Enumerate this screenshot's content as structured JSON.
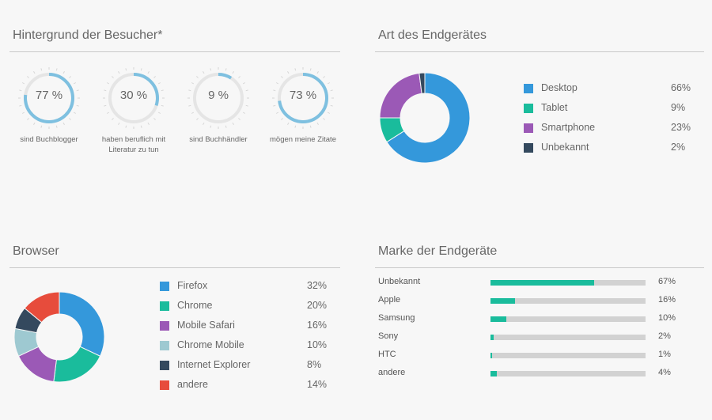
{
  "colors": {
    "gauge_arc": "#7ec0e0",
    "gauge_track": "#e5e5e5",
    "gauge_ticks": "#d6d6d6",
    "bar_fill": "#1abc9c",
    "bar_track": "#d2d2d2"
  },
  "chart_data": [
    {
      "id": "visitors",
      "type": "gauge",
      "title": "Hintergrund der Besucher*",
      "items": [
        {
          "value": 77,
          "display": "77 %",
          "label": "sind Buchblogger"
        },
        {
          "value": 30,
          "display": "30 %",
          "label": "haben beruflich mit Literatur zu tun"
        },
        {
          "value": 9,
          "display": "9 %",
          "label": "sind Buchhändler"
        },
        {
          "value": 73,
          "display": "73 %",
          "label": "mögen meine Zitate"
        }
      ]
    },
    {
      "id": "device",
      "type": "pie",
      "donut": true,
      "title": "Art des Endgerätes",
      "slices": [
        {
          "label": "Desktop",
          "value": 66,
          "display": "66%",
          "color": "#3498db"
        },
        {
          "label": "Tablet",
          "value": 9,
          "display": "9%",
          "color": "#1abc9c"
        },
        {
          "label": "Smartphone",
          "value": 23,
          "display": "23%",
          "color": "#9b59b6"
        },
        {
          "label": "Unbekannt",
          "value": 2,
          "display": "2%",
          "color": "#34495e"
        }
      ]
    },
    {
      "id": "browser",
      "type": "pie",
      "donut": true,
      "title": "Browser",
      "slices": [
        {
          "label": "Firefox",
          "value": 32,
          "display": "32%",
          "color": "#3498db"
        },
        {
          "label": "Chrome",
          "value": 20,
          "display": "20%",
          "color": "#1abc9c"
        },
        {
          "label": "Mobile Safari",
          "value": 16,
          "display": "16%",
          "color": "#9b59b6"
        },
        {
          "label": "Chrome Mobile",
          "value": 10,
          "display": "10%",
          "color": "#9ec9d1"
        },
        {
          "label": "Internet Explorer",
          "value": 8,
          "display": "8%",
          "color": "#34495e"
        },
        {
          "label": "andere",
          "value": 14,
          "display": "14%",
          "color": "#e74c3c"
        }
      ]
    },
    {
      "id": "brand",
      "type": "bar",
      "orientation": "horizontal",
      "title": "Marke der Endgeräte",
      "xlim": [
        0,
        100
      ],
      "categories": [
        "Unbekannt",
        "Apple",
        "Samsung",
        "Sony",
        "HTC",
        "andere"
      ],
      "values": [
        67,
        16,
        10,
        2,
        1,
        4
      ],
      "displays": [
        "67%",
        "16%",
        "10%",
        "2%",
        "1%",
        "4%"
      ]
    }
  ]
}
